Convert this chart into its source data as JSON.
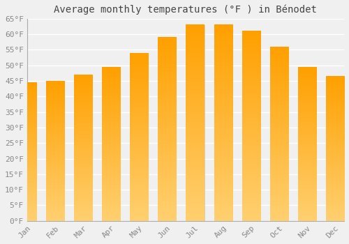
{
  "title": "Average monthly temperatures (°F ) in Bénodet",
  "months": [
    "Jan",
    "Feb",
    "Mar",
    "Apr",
    "May",
    "Jun",
    "Jul",
    "Aug",
    "Sep",
    "Oct",
    "Nov",
    "Dec"
  ],
  "values": [
    44.5,
    45.0,
    47.0,
    49.5,
    54.0,
    59.0,
    63.0,
    63.0,
    61.0,
    56.0,
    49.5,
    46.5
  ],
  "bar_color_top": "#FFA500",
  "bar_color_bottom": "#FFD060",
  "bar_edge_color": "#CCCCCC",
  "background_color": "#F0F0F0",
  "grid_color": "#FFFFFF",
  "ylim": [
    0,
    65
  ],
  "yticks": [
    0,
    5,
    10,
    15,
    20,
    25,
    30,
    35,
    40,
    45,
    50,
    55,
    60,
    65
  ],
  "ytick_labels": [
    "0°F",
    "5°F",
    "10°F",
    "15°F",
    "20°F",
    "25°F",
    "30°F",
    "35°F",
    "40°F",
    "45°F",
    "50°F",
    "55°F",
    "60°F",
    "65°F"
  ],
  "title_fontsize": 10,
  "tick_fontsize": 8,
  "tick_color": "#888888",
  "spine_color": "#AAAAAA"
}
